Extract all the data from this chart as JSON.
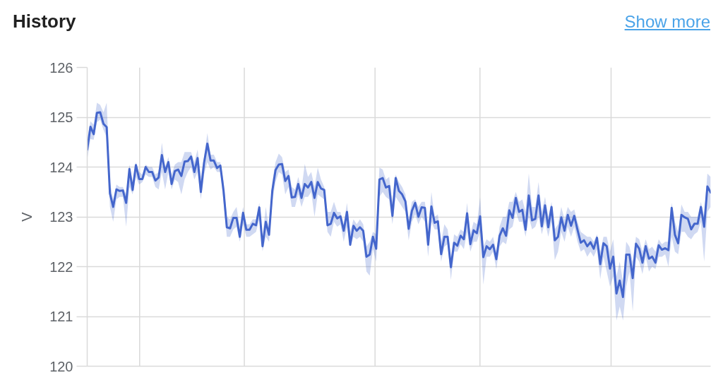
{
  "chart_data": {
    "type": "line",
    "title": "History",
    "ylabel": "V",
    "annotations": [
      "Show more"
    ],
    "categories": [
      null,
      null,
      null,
      null,
      null,
      null,
      null,
      null,
      null,
      null,
      null,
      null,
      null,
      null,
      null,
      null,
      null,
      null,
      null,
      null,
      null,
      null,
      null,
      null,
      null,
      null,
      null,
      null,
      null,
      null,
      null,
      null,
      null,
      null,
      null,
      null,
      null,
      null,
      null,
      null,
      null,
      null,
      null,
      null,
      null,
      null,
      null,
      null,
      null,
      null,
      null,
      null,
      null,
      null,
      null,
      null,
      null,
      null,
      null,
      null,
      null,
      null,
      null,
      null,
      null,
      null,
      null,
      null,
      null,
      null,
      null,
      null,
      null,
      null,
      null,
      null,
      null,
      null,
      null,
      null,
      null,
      null,
      null,
      null,
      null,
      null,
      null,
      null,
      null,
      null,
      null,
      null,
      null,
      null,
      null,
      null,
      null,
      null,
      null,
      null,
      null,
      null,
      null,
      null,
      null,
      null,
      null,
      null,
      null,
      null,
      null,
      null,
      null,
      null,
      null,
      null,
      null,
      null,
      null,
      null,
      null,
      null,
      null,
      null,
      null,
      null,
      null,
      null,
      null,
      null,
      null,
      null,
      null,
      null,
      null,
      null,
      null,
      null,
      null,
      null,
      null,
      null,
      null,
      null,
      null,
      null,
      null,
      null,
      null,
      null,
      null,
      null,
      null,
      null,
      null,
      null,
      null,
      null,
      null,
      null,
      null,
      null,
      null,
      null,
      null,
      null,
      null,
      null,
      null,
      null,
      null,
      null,
      null,
      null,
      null,
      null,
      null,
      null,
      null,
      null,
      null,
      null,
      null,
      null,
      null,
      null,
      null,
      null,
      null,
      null,
      null,
      null,
      null
    ],
    "ylim": [
      120,
      126
    ],
    "yticks": [
      120,
      121,
      122,
      123,
      124,
      125,
      126
    ],
    "grid": "y",
    "series": [
      {
        "color": "#4466cc",
        "values": [
          124.35,
          124.81,
          124.66,
          125.09,
          125.1,
          124.87,
          124.8,
          123.47,
          123.2,
          123.55,
          123.52,
          123.53,
          123.28,
          123.96,
          123.54,
          124.04,
          123.76,
          123.76,
          124.0,
          123.9,
          123.9,
          123.73,
          123.79,
          124.24,
          123.9,
          124.1,
          123.66,
          123.92,
          123.95,
          123.82,
          124.11,
          124.12,
          124.21,
          123.9,
          124.18,
          123.5,
          124.09,
          124.47,
          124.13,
          124.13,
          123.98,
          124.03,
          123.52,
          122.79,
          122.77,
          122.98,
          122.98,
          122.6,
          123.08,
          122.74,
          122.74,
          122.86,
          122.83,
          123.19,
          122.41,
          122.9,
          122.64,
          123.52,
          123.94,
          124.05,
          124.06,
          123.72,
          123.82,
          123.39,
          123.4,
          123.66,
          123.38,
          123.66,
          123.59,
          123.7,
          123.38,
          123.7,
          123.57,
          123.54,
          122.83,
          122.86,
          123.08,
          122.97,
          123.01,
          122.72,
          123.1,
          122.44,
          122.82,
          122.72,
          122.79,
          122.72,
          122.2,
          122.24,
          122.6,
          122.36,
          123.75,
          123.78,
          123.59,
          123.62,
          123.02,
          123.78,
          123.52,
          123.45,
          123.31,
          122.76,
          123.12,
          123.28,
          123.0,
          123.19,
          123.18,
          122.44,
          123.21,
          122.88,
          122.91,
          122.25,
          122.6,
          122.6,
          121.99,
          122.48,
          122.42,
          122.62,
          122.55,
          123.07,
          122.45,
          122.73,
          122.67,
          123.01,
          122.19,
          122.41,
          122.35,
          122.44,
          122.15,
          122.62,
          122.77,
          122.62,
          123.13,
          122.98,
          123.38,
          123.1,
          123.14,
          122.74,
          123.43,
          122.93,
          122.96,
          123.43,
          122.81,
          123.23,
          122.79,
          123.2,
          122.53,
          122.6,
          122.99,
          122.72,
          123.04,
          122.82,
          123.02,
          122.74,
          122.48,
          122.53,
          122.41,
          122.49,
          122.36,
          122.58,
          122.05,
          122.47,
          122.41,
          121.96,
          122.2,
          121.46,
          121.72,
          121.39,
          122.24,
          122.24,
          121.77,
          122.46,
          122.36,
          122.08,
          122.41,
          122.16,
          122.2,
          122.08,
          122.43,
          122.34,
          122.37,
          122.33,
          123.18,
          122.64,
          122.47,
          123.04,
          122.99,
          122.96,
          122.75,
          122.86,
          122.86,
          123.2,
          122.8,
          123.61,
          123.49
        ],
        "lower": [
          124.15,
          124.56,
          124.55,
          124.9,
          124.95,
          124.75,
          124.6,
          123.2,
          122.9,
          123.35,
          123.4,
          123.4,
          122.8,
          123.6,
          123.45,
          123.8,
          123.65,
          123.7,
          123.85,
          123.8,
          123.8,
          123.6,
          123.55,
          123.9,
          123.55,
          123.9,
          123.55,
          123.75,
          123.7,
          123.45,
          123.75,
          123.9,
          124.0,
          123.75,
          123.9,
          123.35,
          123.85,
          124.1,
          123.95,
          124.0,
          123.9,
          123.9,
          123.3,
          122.6,
          122.6,
          122.75,
          122.8,
          122.5,
          122.85,
          122.6,
          122.6,
          122.65,
          122.7,
          122.95,
          122.31,
          122.6,
          122.5,
          123.3,
          123.7,
          123.9,
          123.85,
          123.45,
          123.6,
          123.2,
          123.2,
          123.45,
          123.2,
          123.4,
          123.4,
          123.5,
          123.0,
          123.45,
          123.4,
          123.35,
          122.7,
          122.6,
          122.9,
          122.8,
          122.85,
          122.5,
          122.8,
          122.4,
          122.6,
          122.55,
          122.6,
          122.5,
          121.9,
          121.82,
          122.35,
          122.1,
          123.4,
          123.5,
          123.4,
          123.35,
          122.85,
          123.4,
          123.3,
          123.2,
          123.1,
          122.53,
          122.9,
          123.05,
          122.85,
          123.0,
          122.9,
          122.2,
          122.9,
          122.75,
          122.75,
          122.1,
          122.4,
          122.45,
          121.73,
          122.3,
          122.3,
          122.45,
          122.35,
          122.7,
          122.3,
          122.5,
          122.5,
          122.7,
          121.64,
          122.2,
          122.2,
          122.3,
          121.95,
          122.4,
          122.5,
          122.45,
          122.75,
          122.8,
          123.1,
          122.9,
          122.9,
          122.6,
          123.0,
          122.75,
          122.8,
          123.0,
          122.65,
          122.9,
          122.6,
          122.9,
          122.13,
          122.3,
          122.7,
          122.5,
          122.8,
          122.6,
          122.8,
          122.5,
          122.3,
          122.35,
          122.2,
          122.3,
          122.2,
          122.35,
          121.75,
          122.2,
          121.9,
          121.6,
          121.8,
          120.92,
          121.2,
          120.92,
          121.6,
          121.9,
          121.1,
          122.2,
          122.1,
          121.85,
          122.2,
          121.9,
          122.0,
          121.95,
          122.2,
          122.2,
          122.25,
          122.0,
          122.6,
          122.3,
          122.25,
          122.7,
          122.7,
          122.6,
          122.55,
          122.65,
          122.7,
          122.9,
          122.1,
          123.1,
          123.2
        ],
        "upper": [
          124.55,
          124.92,
          124.85,
          125.29,
          125.25,
          125.1,
          125.29,
          123.7,
          123.35,
          123.65,
          123.6,
          123.6,
          123.45,
          124.05,
          123.7,
          124.1,
          123.9,
          123.85,
          124.05,
          124.0,
          124.0,
          123.85,
          123.9,
          124.49,
          124.0,
          124.2,
          123.85,
          124.05,
          124.1,
          124.1,
          124.3,
          124.3,
          124.3,
          124.1,
          124.35,
          123.8,
          124.2,
          124.68,
          124.25,
          124.25,
          124.1,
          124.1,
          123.7,
          123.0,
          122.95,
          123.1,
          123.2,
          122.8,
          123.2,
          122.85,
          122.85,
          122.95,
          122.95,
          123.28,
          122.6,
          123.2,
          122.75,
          123.7,
          124.1,
          124.27,
          124.2,
          123.9,
          123.95,
          123.6,
          123.55,
          123.8,
          123.55,
          124.06,
          123.8,
          123.9,
          123.6,
          123.99,
          123.75,
          123.6,
          123.1,
          123.1,
          123.3,
          123.1,
          123.1,
          122.85,
          123.28,
          122.7,
          122.95,
          122.85,
          122.95,
          122.85,
          122.4,
          122.5,
          122.7,
          122.65,
          123.99,
          123.95,
          123.75,
          123.8,
          123.3,
          123.85,
          123.7,
          123.6,
          123.45,
          122.95,
          123.3,
          123.35,
          123.2,
          123.3,
          123.3,
          122.7,
          123.5,
          123.0,
          123.05,
          122.5,
          122.85,
          122.75,
          122.2,
          122.65,
          122.6,
          122.75,
          122.7,
          123.28,
          122.65,
          122.9,
          122.85,
          123.39,
          122.4,
          122.55,
          122.5,
          122.6,
          122.3,
          122.8,
          123.0,
          123.0,
          123.3,
          123.3,
          123.5,
          123.3,
          123.35,
          123.1,
          123.87,
          123.2,
          123.2,
          123.7,
          123.1,
          123.4,
          123.0,
          123.3,
          122.75,
          122.85,
          123.2,
          122.95,
          123.2,
          123.1,
          123.15,
          122.9,
          122.7,
          122.65,
          122.6,
          122.6,
          122.5,
          122.65,
          122.3,
          122.6,
          122.6,
          122.3,
          122.55,
          121.8,
          122.1,
          121.7,
          122.5,
          122.4,
          122.1,
          122.6,
          122.55,
          122.3,
          122.55,
          122.35,
          122.4,
          122.3,
          122.55,
          122.45,
          122.5,
          122.5,
          123.28,
          122.9,
          122.7,
          123.25,
          123.1,
          123.1,
          123.0,
          123.0,
          123.0,
          123.3,
          123.0,
          123.87,
          123.8
        ]
      }
    ]
  }
}
